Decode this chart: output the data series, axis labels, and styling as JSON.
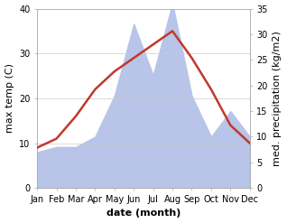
{
  "months": [
    "Jan",
    "Feb",
    "Mar",
    "Apr",
    "May",
    "Jun",
    "Jul",
    "Aug",
    "Sep",
    "Oct",
    "Nov",
    "Dec"
  ],
  "temperature": [
    9,
    11,
    16,
    22,
    26,
    29,
    32,
    35,
    29,
    22,
    14,
    10
  ],
  "precipitation": [
    7,
    8,
    8,
    10,
    18,
    32,
    22,
    36,
    18,
    10,
    15,
    10
  ],
  "temp_color": "#c0392b",
  "precip_fill_color": "#b8c4e8",
  "precip_alpha": 1.0,
  "title": "",
  "xlabel": "date (month)",
  "ylabel_left": "max temp (C)",
  "ylabel_right": "med. precipitation (kg/m2)",
  "ylim_left": [
    0,
    40
  ],
  "ylim_right": [
    0,
    35
  ],
  "yticks_left": [
    0,
    10,
    20,
    30,
    40
  ],
  "yticks_right": [
    0,
    5,
    10,
    15,
    20,
    25,
    30,
    35
  ],
  "bg_color": "#ffffff",
  "temp_linewidth": 1.8,
  "xlabel_fontsize": 8,
  "ylabel_fontsize": 8,
  "tick_fontsize": 7,
  "spine_color": "#aaaaaa",
  "grid_color": "#cccccc"
}
